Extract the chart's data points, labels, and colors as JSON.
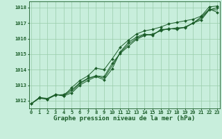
{
  "x": [
    0,
    1,
    2,
    3,
    4,
    5,
    6,
    7,
    8,
    9,
    10,
    11,
    12,
    13,
    14,
    15,
    16,
    17,
    18,
    19,
    20,
    21,
    22,
    23
  ],
  "line1": [
    1011.8,
    1012.2,
    1012.1,
    1012.4,
    1012.3,
    1012.5,
    1013.0,
    1013.3,
    1013.55,
    1013.35,
    1014.05,
    1015.15,
    1015.75,
    1016.1,
    1016.3,
    1016.2,
    1016.6,
    1016.6,
    1016.7,
    1016.7,
    1017.0,
    1017.4,
    1017.9,
    1017.7
  ],
  "line2": [
    1011.8,
    1012.15,
    1012.1,
    1012.35,
    1012.4,
    1012.7,
    1013.15,
    1013.45,
    1013.6,
    1013.55,
    1014.4,
    1015.05,
    1015.5,
    1015.95,
    1016.2,
    1016.3,
    1016.5,
    1016.65,
    1016.6,
    1016.75,
    1017.0,
    1017.2,
    1017.85,
    1018.0
  ],
  "line3": [
    1011.8,
    1012.2,
    1012.15,
    1012.4,
    1012.35,
    1012.6,
    1013.1,
    1013.4,
    1013.6,
    1013.45,
    1014.25,
    1015.1,
    1015.62,
    1016.02,
    1016.25,
    1016.25,
    1016.55,
    1016.63,
    1016.65,
    1016.73,
    1017.0,
    1017.3,
    1017.88,
    1017.85
  ],
  "line4": [
    1011.8,
    1012.2,
    1012.1,
    1012.4,
    1012.3,
    1012.85,
    1013.3,
    1013.6,
    1014.1,
    1014.0,
    1014.7,
    1015.45,
    1015.9,
    1016.3,
    1016.5,
    1016.6,
    1016.75,
    1016.95,
    1017.05,
    1017.15,
    1017.25,
    1017.45,
    1018.05,
    1018.1
  ],
  "bg_color": "#c8eedc",
  "grid_color": "#99ccaa",
  "line_color": "#1a5c28",
  "title": "Graphe pression niveau de la mer (hPa)",
  "ylim_min": 1011.5,
  "ylim_max": 1018.4,
  "yticks": [
    1012,
    1013,
    1014,
    1015,
    1016,
    1017,
    1018
  ],
  "xticks": [
    0,
    1,
    2,
    3,
    4,
    5,
    6,
    7,
    8,
    9,
    10,
    11,
    12,
    13,
    14,
    15,
    16,
    17,
    18,
    19,
    20,
    21,
    22,
    23
  ],
  "title_fontsize": 6.5,
  "tick_fontsize": 5.0,
  "marker": "D",
  "markersize": 2.0,
  "linewidth": 0.7
}
